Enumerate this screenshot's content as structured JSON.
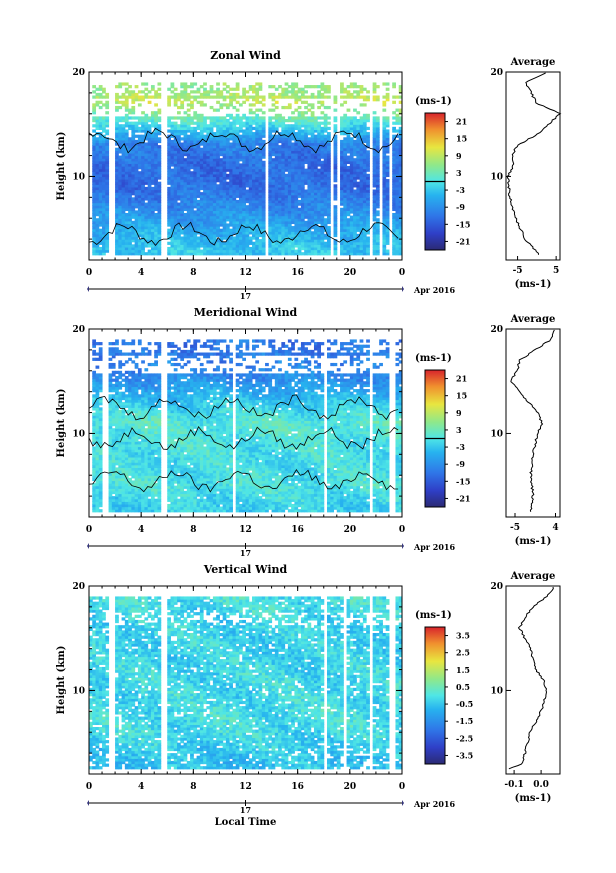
{
  "chart_data": [
    {
      "type": "heatmap",
      "title": "Zonal Wind",
      "xlabel": "",
      "ylabel": "Height (km)",
      "xlim": [
        0,
        24
      ],
      "ylim": [
        2,
        20
      ],
      "x_ticks": [
        "0",
        "4",
        "8",
        "12",
        "16",
        "20",
        "0"
      ],
      "y_ticks": [
        "10",
        "20"
      ],
      "day_label": "17",
      "date_label": "Apr 2016",
      "colorbar": {
        "unit": "(ms-1)",
        "ticks": [
          "21",
          "15",
          "9",
          "3",
          "-3",
          "-9",
          "-15",
          "-21"
        ],
        "range": [
          -24,
          24
        ]
      },
      "field": {
        "data_gaps_hours": [
          [
            0.0,
            0.2
          ],
          [
            1.5,
            2.0
          ],
          [
            5.5,
            5.9
          ],
          [
            13.5,
            13.7
          ],
          [
            18.3,
            18.6
          ],
          [
            19.0,
            19.2
          ],
          [
            21.3,
            21.6
          ],
          [
            22.2,
            22.4
          ],
          [
            22.8,
            23.1
          ]
        ],
        "levels_km": [
          3,
          5,
          7,
          9,
          11,
          13,
          15,
          17,
          18.5
        ],
        "mean_ms": [
          -3,
          -6,
          -10,
          -13,
          -13,
          -11,
          0,
          9,
          6
        ]
      },
      "profile": {
        "title": "Average",
        "xlabel": "(ms-1)",
        "xlim": [
          -8,
          6
        ],
        "x_ticks": [
          "-5",
          "5"
        ],
        "y_ticks": [
          "10",
          "20"
        ],
        "height_km": [
          2.5,
          4,
          6,
          8,
          10,
          11,
          12,
          13,
          14,
          15,
          16,
          16.5,
          17,
          18,
          19,
          20
        ],
        "value": [
          0.5,
          -3,
          -5.5,
          -7,
          -7.5,
          -6,
          -6.5,
          -5,
          0,
          3,
          6,
          3,
          0,
          -1.5,
          -3,
          3
        ]
      }
    },
    {
      "type": "heatmap",
      "title": "Meridional Wind",
      "xlabel": "",
      "ylabel": "Height (km)",
      "xlim": [
        0,
        24
      ],
      "ylim": [
        2,
        20
      ],
      "x_ticks": [
        "0",
        "4",
        "8",
        "12",
        "16",
        "20",
        "0"
      ],
      "y_ticks": [
        "10",
        "20"
      ],
      "day_label": "17",
      "date_label": "Apr 2016",
      "colorbar": {
        "unit": "(ms-1)",
        "ticks": [
          "21",
          "15",
          "9",
          "3",
          "-3",
          "-9",
          "-15",
          "-21"
        ],
        "range": [
          -24,
          24
        ]
      },
      "field": {
        "data_gaps_hours": [
          [
            0.0,
            0.2
          ],
          [
            1.0,
            1.3
          ],
          [
            5.5,
            5.9
          ],
          [
            10.9,
            11.1
          ],
          [
            17.9,
            18.2
          ],
          [
            21.3,
            21.6
          ],
          [
            22.3,
            22.5
          ],
          [
            23.0,
            23.3
          ]
        ],
        "levels_km": [
          3,
          5,
          7,
          9,
          11,
          13,
          15,
          17,
          18.5
        ],
        "mean_ms": [
          -2,
          0,
          -1,
          0,
          1,
          -3,
          -9,
          -11,
          -12
        ]
      },
      "profile": {
        "title": "Average",
        "xlabel": "(ms-1)",
        "xlim": [
          -7,
          5
        ],
        "x_ticks": [
          "-5",
          "4"
        ],
        "y_ticks": [
          "10",
          "20"
        ],
        "height_km": [
          2.5,
          4,
          6,
          8,
          10,
          11,
          12,
          13,
          14,
          15,
          16,
          17,
          18,
          19,
          20
        ],
        "value": [
          -1.5,
          -1,
          -1.5,
          -1,
          0,
          1,
          0,
          -2,
          -4,
          -6,
          -4.5,
          -4,
          -0.5,
          3,
          4
        ]
      }
    },
    {
      "type": "heatmap",
      "title": "Vertical Wind",
      "xlabel": "Local Time",
      "ylabel": "Height (km)",
      "xlim": [
        0,
        24
      ],
      "ylim": [
        2,
        20
      ],
      "x_ticks": [
        "0",
        "4",
        "8",
        "12",
        "16",
        "20",
        "0"
      ],
      "y_ticks": [
        "10",
        "20"
      ],
      "day_label": "17",
      "date_label": "Apr 2016",
      "colorbar": {
        "unit": "(ms-1)",
        "ticks": [
          "3.5",
          "2.5",
          "1.5",
          "0.5",
          "-0.5",
          "-1.5",
          "-2.5",
          "-3.5"
        ],
        "range": [
          -4,
          4
        ]
      },
      "field": {
        "data_gaps_hours": [
          [
            0.3,
            0.5
          ],
          [
            1.5,
            1.9
          ],
          [
            5.5,
            5.9
          ],
          [
            17.9,
            18.2
          ],
          [
            19.3,
            19.6
          ],
          [
            21.3,
            21.6
          ],
          [
            22.3,
            22.5
          ],
          [
            23.0,
            23.3
          ]
        ],
        "levels_km": [
          3,
          5,
          7,
          9,
          11,
          13,
          15,
          17,
          18.5
        ],
        "mean_ms": [
          -0.6,
          -0.3,
          -0.1,
          -0.2,
          -0.2,
          -0.3,
          -0.3,
          -0.2,
          -0.1
        ]
      },
      "profile": {
        "title": "Average",
        "xlabel": "(ms-1)",
        "xlim": [
          -0.13,
          0.07
        ],
        "x_ticks": [
          "-0.1",
          "0.0"
        ],
        "y_ticks": [
          "10",
          "20"
        ],
        "height_km": [
          2.5,
          3,
          4,
          6,
          8,
          10,
          11,
          12,
          13,
          14,
          15,
          16,
          17,
          18,
          19,
          20
        ],
        "value": [
          -0.12,
          -0.07,
          -0.06,
          -0.04,
          0.0,
          0.02,
          0.01,
          -0.02,
          -0.03,
          -0.04,
          -0.06,
          -0.08,
          -0.06,
          -0.03,
          0.02,
          0.05
        ]
      }
    }
  ]
}
